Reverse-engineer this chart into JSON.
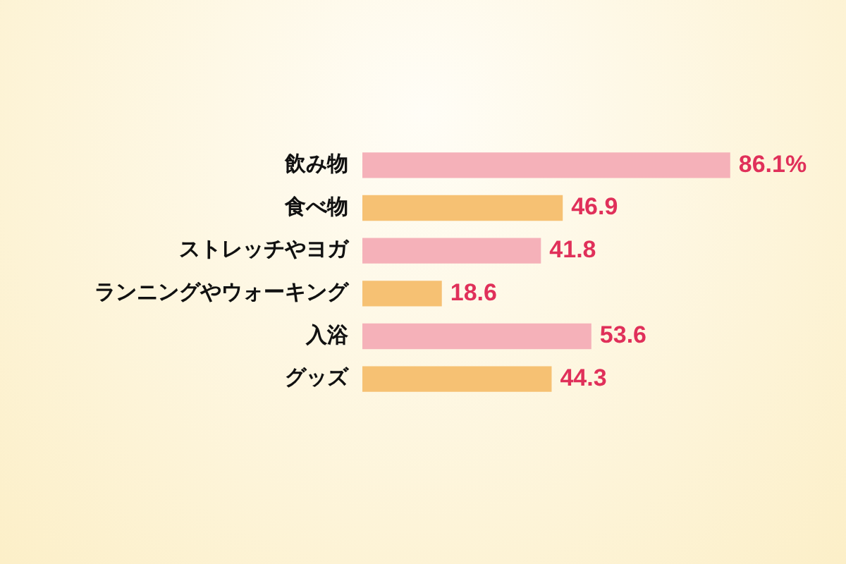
{
  "chart_data": {
    "type": "bar",
    "orientation": "horizontal",
    "categories": [
      "飲み物",
      "食べ物",
      "ストレッチやヨガ",
      "ランニングやウォーキング",
      "入浴",
      "グッズ"
    ],
    "values": [
      86.1,
      46.9,
      41.8,
      18.6,
      53.6,
      44.3
    ],
    "colors": [
      "#f5b1b9",
      "#f6c173",
      "#f5b1b9",
      "#f6c173",
      "#f5b1b9",
      "#f6c173"
    ],
    "value_labels": [
      "86.1%",
      "46.9",
      "41.8",
      "18.6",
      "53.6",
      "44.3"
    ],
    "grid": false,
    "legend": false,
    "tick_labels": "y"
  }
}
